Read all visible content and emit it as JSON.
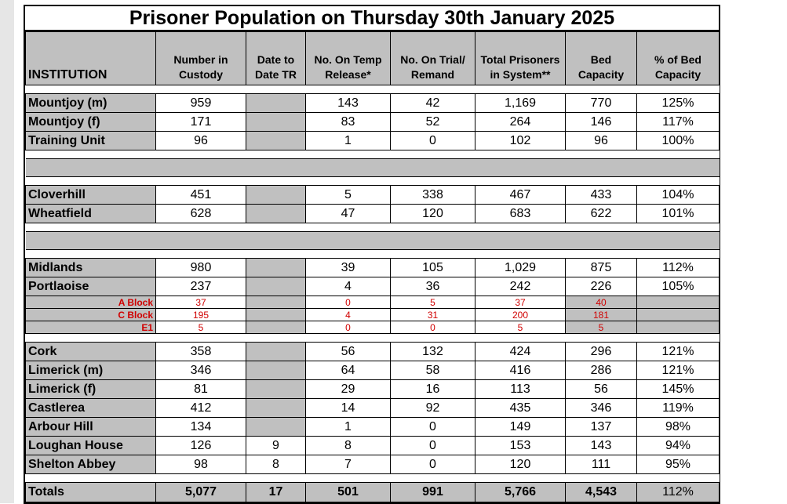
{
  "title": "Prisoner Population on Thursday 30th January 2025",
  "headers": {
    "institution": "INSTITUTION",
    "custody_l1": "Number in",
    "custody_l2": "Custody",
    "date_l1": "Date to",
    "date_l2": "Date TR",
    "temp_l1": "No. On Temp",
    "temp_l2": "Release*",
    "trial_l1": "No. On Trial/",
    "trial_l2": "Remand",
    "total_l1": "Total Prisoners",
    "total_l2": "in System**",
    "bed_l1": "Bed",
    "bed_l2": "Capacity",
    "pct_l1": "% of Bed",
    "pct_l2": "Capacity"
  },
  "rows": [
    {
      "name": "Mountjoy (m)",
      "custody": "959",
      "date": "",
      "temp": "143",
      "trial": "42",
      "total": "1,169",
      "bed": "770",
      "pct": "125%"
    },
    {
      "name": "Mountjoy (f)",
      "custody": "171",
      "date": "",
      "temp": "83",
      "trial": "52",
      "total": "264",
      "bed": "146",
      "pct": "117%"
    },
    {
      "name": "Training Unit",
      "custody": "96",
      "date": "",
      "temp": "1",
      "trial": "0",
      "total": "102",
      "bed": "96",
      "pct": "100%"
    },
    {
      "name": "Cloverhill",
      "custody": "451",
      "date": "",
      "temp": "5",
      "trial": "338",
      "total": "467",
      "bed": "433",
      "pct": "104%"
    },
    {
      "name": "Wheatfield",
      "custody": "628",
      "date": "",
      "temp": "47",
      "trial": "120",
      "total": "683",
      "bed": "622",
      "pct": "101%"
    },
    {
      "name": "Midlands",
      "custody": "980",
      "date": "",
      "temp": "39",
      "trial": "105",
      "total": "1,029",
      "bed": "875",
      "pct": "112%"
    },
    {
      "name": "Portlaoise",
      "custody": "237",
      "date": "",
      "temp": "4",
      "trial": "36",
      "total": "242",
      "bed": "226",
      "pct": "105%"
    },
    {
      "name": "A Block",
      "custody": "37",
      "date": "",
      "temp": "0",
      "trial": "5",
      "total": "37",
      "bed": "40",
      "pct": ""
    },
    {
      "name": "C Block",
      "custody": "195",
      "date": "",
      "temp": "4",
      "trial": "31",
      "total": "200",
      "bed": "181",
      "pct": ""
    },
    {
      "name": "E1",
      "custody": "5",
      "date": "",
      "temp": "0",
      "trial": "0",
      "total": "5",
      "bed": "5",
      "pct": ""
    },
    {
      "name": "Cork",
      "custody": "358",
      "date": "",
      "temp": "56",
      "trial": "132",
      "total": "424",
      "bed": "296",
      "pct": "121%"
    },
    {
      "name": "Limerick (m)",
      "custody": "346",
      "date": "",
      "temp": "64",
      "trial": "58",
      "total": "416",
      "bed": "286",
      "pct": "121%"
    },
    {
      "name": "Limerick (f)",
      "custody": "81",
      "date": "",
      "temp": "29",
      "trial": "16",
      "total": "113",
      "bed": "56",
      "pct": "145%"
    },
    {
      "name": "Castlerea",
      "custody": "412",
      "date": "",
      "temp": "14",
      "trial": "92",
      "total": "435",
      "bed": "346",
      "pct": "119%"
    },
    {
      "name": "Arbour Hill",
      "custody": "134",
      "date": "",
      "temp": "1",
      "trial": "0",
      "total": "149",
      "bed": "137",
      "pct": "98%"
    },
    {
      "name": "Loughan House",
      "custody": "126",
      "date": "9",
      "temp": "8",
      "trial": "0",
      "total": "153",
      "bed": "143",
      "pct": "94%"
    },
    {
      "name": "Shelton Abbey",
      "custody": "98",
      "date": "8",
      "temp": "7",
      "trial": "0",
      "total": "120",
      "bed": "111",
      "pct": "95%"
    }
  ],
  "totals": {
    "name": "Totals",
    "custody": "5,077",
    "date": "17",
    "temp": "501",
    "trial": "991",
    "total": "5,766",
    "bed": "4,543",
    "pct": "112%"
  }
}
